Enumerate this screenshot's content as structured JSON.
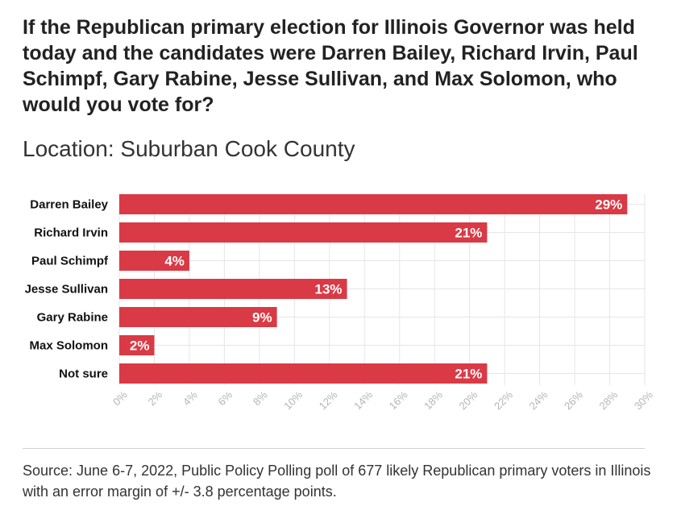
{
  "title": "If the Republican primary election for Illinois Governor was held today and the candidates were Darren Bailey, Richard Irvin, Paul Schimpf, Gary Rabine, Jesse Sullivan, and Max Solomon, who would you vote for?",
  "subtitle": "Location: Suburban Cook County",
  "source": "Source: June 6-7, 2022, Public Policy Polling poll of 677 likely Republican primary voters in Illinois with an error margin of +/- 3.8 percentage points.",
  "colors": {
    "bar": "#d93a45",
    "grid": "#e6e6e6",
    "tick": "#b5b5b5",
    "label": "#111111"
  },
  "chart_data": {
    "type": "bar",
    "orientation": "horizontal",
    "title": "If the Republican primary election for Illinois Governor was held today and the candidates were Darren Bailey, Richard Irvin, Paul Schimpf, Gary Rabine, Jesse Sullivan, and Max Solomon, who would you vote for?",
    "subtitle": "Location: Suburban Cook County",
    "categories": [
      "Darren Bailey",
      "Richard Irvin",
      "Paul Schimpf",
      "Jesse Sullivan",
      "Gary Rabine",
      "Max Solomon",
      "Not sure"
    ],
    "values": [
      29,
      21,
      4,
      13,
      9,
      2,
      21
    ],
    "value_labels": [
      "29%",
      "21%",
      "4%",
      "13%",
      "9%",
      "2%",
      "21%"
    ],
    "xlim": [
      0,
      30
    ],
    "xticks": [
      0,
      2,
      4,
      6,
      8,
      10,
      12,
      14,
      16,
      18,
      20,
      22,
      24,
      26,
      28,
      30
    ],
    "xtick_labels": [
      "0%",
      "2%",
      "4%",
      "6%",
      "8%",
      "10%",
      "12%",
      "14%",
      "16%",
      "18%",
      "20%",
      "22%",
      "24%",
      "26%",
      "28%",
      "30%"
    ],
    "xlabel": "",
    "ylabel": "",
    "grid": true
  }
}
